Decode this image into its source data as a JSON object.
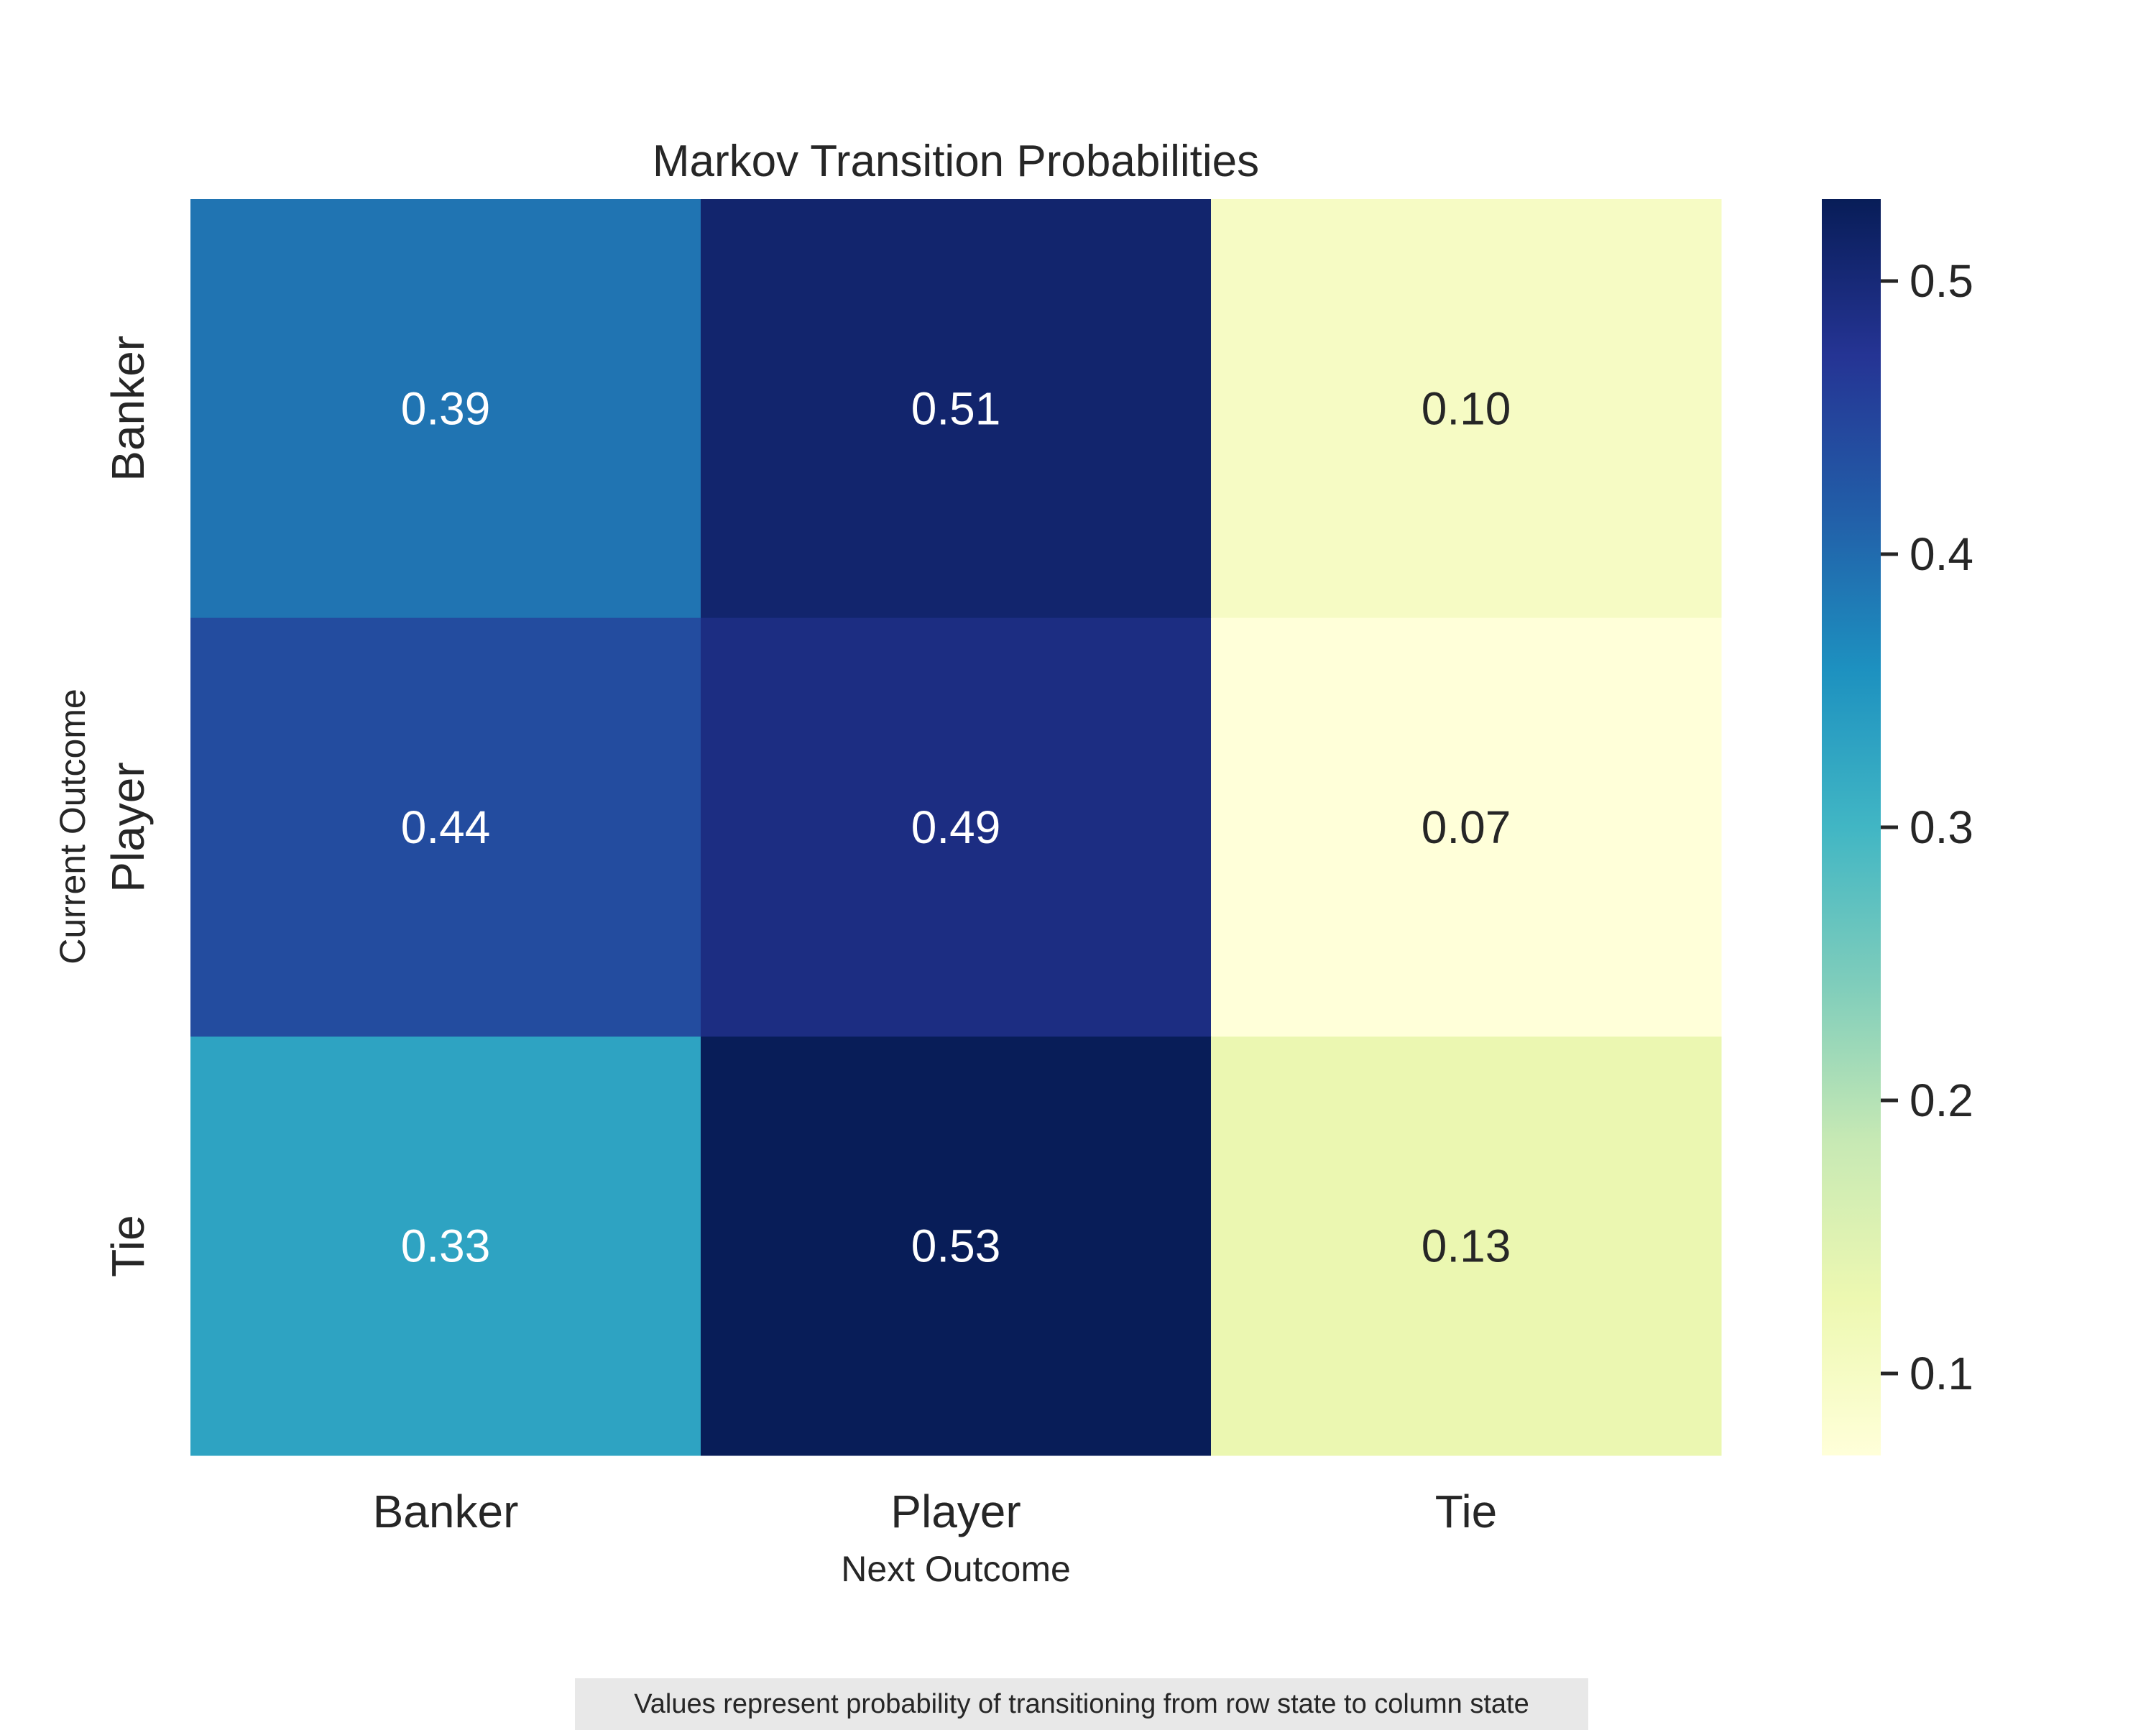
{
  "chart_data": {
    "type": "heatmap",
    "title": "Markov Transition Probabilities",
    "xlabel": "Next Outcome",
    "ylabel": "Current Outcome",
    "x_categories": [
      "Banker",
      "Player",
      "Tie"
    ],
    "y_categories": [
      "Banker",
      "Player",
      "Tie"
    ],
    "values": [
      [
        0.39,
        0.51,
        0.1
      ],
      [
        0.44,
        0.49,
        0.07
      ],
      [
        0.33,
        0.53,
        0.13
      ]
    ],
    "value_labels": [
      [
        "0.39",
        "0.51",
        "0.10"
      ],
      [
        "0.44",
        "0.49",
        "0.07"
      ],
      [
        "0.33",
        "0.53",
        "0.13"
      ]
    ],
    "colormap": "YlGnBu",
    "vmin": 0.07,
    "vmax": 0.53,
    "colorbar_ticks": [
      0.1,
      0.2,
      0.3,
      0.4,
      0.5
    ],
    "colorbar_tick_labels": [
      "0.1",
      "0.2",
      "0.3",
      "0.4",
      "0.5"
    ],
    "grid": false,
    "colorbar_position": "right"
  },
  "footnote": "Values represent probability of transitioning from row state to column state"
}
